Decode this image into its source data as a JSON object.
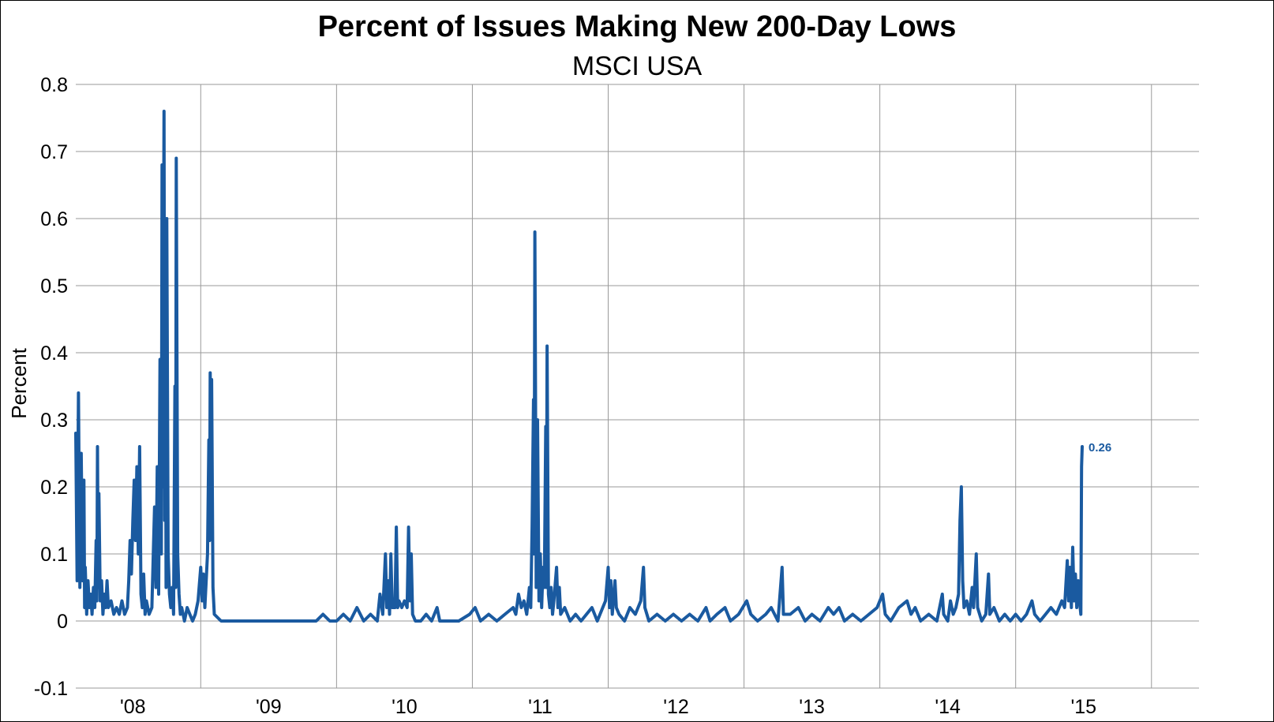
{
  "chart_data": {
    "type": "line",
    "title": "Percent of Issues Making New 200-Day Lows",
    "subtitle": "MSCI USA",
    "ylabel": "Percent",
    "xlabel": "",
    "ylim": [
      -0.1,
      0.8
    ],
    "yticks": [
      "0.8",
      "0.7",
      "0.6",
      "0.5",
      "0.4",
      "0.3",
      "0.2",
      "0.1",
      "0",
      "-0.1"
    ],
    "xlim": [
      2007.58,
      2015.85
    ],
    "year_boundaries": [
      2008.5,
      2009.5,
      2010.5,
      2011.5,
      2012.5,
      2013.5,
      2014.5,
      2015.5
    ],
    "x_tick_labels": [
      {
        "label": "'08",
        "x": 2008.0
      },
      {
        "label": "'09",
        "x": 2009.0
      },
      {
        "label": "'10",
        "x": 2010.0
      },
      {
        "label": "'11",
        "x": 2011.0
      },
      {
        "label": "'12",
        "x": 2012.0
      },
      {
        "label": "'13",
        "x": 2013.0
      },
      {
        "label": "'14",
        "x": 2014.0
      },
      {
        "label": "'15",
        "x": 2015.0
      }
    ],
    "grid": true,
    "colors": {
      "series": "#1a5aa0",
      "grid": "#9a9a9a"
    },
    "last_value_label": "0.26",
    "series": [
      {
        "values": [
          [
            2007.58,
            0.28
          ],
          [
            2007.59,
            0.06
          ],
          [
            2007.6,
            0.34
          ],
          [
            2007.61,
            0.05
          ],
          [
            2007.62,
            0.25
          ],
          [
            2007.63,
            0.06
          ],
          [
            2007.64,
            0.21
          ],
          [
            2007.645,
            0.02
          ],
          [
            2007.65,
            0.08
          ],
          [
            2007.66,
            0.01
          ],
          [
            2007.67,
            0.06
          ],
          [
            2007.68,
            0.02
          ],
          [
            2007.69,
            0.04
          ],
          [
            2007.7,
            0.01
          ],
          [
            2007.71,
            0.05
          ],
          [
            2007.72,
            0.02
          ],
          [
            2007.73,
            0.12
          ],
          [
            2007.735,
            0.03
          ],
          [
            2007.74,
            0.26
          ],
          [
            2007.745,
            0.05
          ],
          [
            2007.75,
            0.19
          ],
          [
            2007.76,
            0.03
          ],
          [
            2007.77,
            0.06
          ],
          [
            2007.78,
            0.01
          ],
          [
            2007.79,
            0.04
          ],
          [
            2007.8,
            0.02
          ],
          [
            2007.81,
            0.06
          ],
          [
            2007.82,
            0.02
          ],
          [
            2007.84,
            0.03
          ],
          [
            2007.86,
            0.01
          ],
          [
            2007.88,
            0.02
          ],
          [
            2007.9,
            0.01
          ],
          [
            2007.92,
            0.03
          ],
          [
            2007.94,
            0.01
          ],
          [
            2007.96,
            0.02
          ],
          [
            2007.97,
            0.06
          ],
          [
            2007.98,
            0.12
          ],
          [
            2007.99,
            0.07
          ],
          [
            2008.0,
            0.15
          ],
          [
            2008.01,
            0.21
          ],
          [
            2008.02,
            0.12
          ],
          [
            2008.03,
            0.23
          ],
          [
            2008.04,
            0.1
          ],
          [
            2008.05,
            0.26
          ],
          [
            2008.06,
            0.04
          ],
          [
            2008.07,
            0.02
          ],
          [
            2008.08,
            0.07
          ],
          [
            2008.09,
            0.01
          ],
          [
            2008.1,
            0.03
          ],
          [
            2008.12,
            0.01
          ],
          [
            2008.14,
            0.02
          ],
          [
            2008.16,
            0.17
          ],
          [
            2008.17,
            0.05
          ],
          [
            2008.18,
            0.23
          ],
          [
            2008.19,
            0.04
          ],
          [
            2008.2,
            0.39
          ],
          [
            2008.21,
            0.1
          ],
          [
            2008.215,
            0.68
          ],
          [
            2008.22,
            0.2
          ],
          [
            2008.23,
            0.76
          ],
          [
            2008.235,
            0.15
          ],
          [
            2008.24,
            0.4
          ],
          [
            2008.245,
            0.05
          ],
          [
            2008.25,
            0.6
          ],
          [
            2008.26,
            0.1
          ],
          [
            2008.27,
            0.04
          ],
          [
            2008.28,
            0.02
          ],
          [
            2008.29,
            0.05
          ],
          [
            2008.3,
            0.01
          ],
          [
            2008.31,
            0.35
          ],
          [
            2008.315,
            0.05
          ],
          [
            2008.32,
            0.69
          ],
          [
            2008.33,
            0.1
          ],
          [
            2008.34,
            0.04
          ],
          [
            2008.35,
            0.01
          ],
          [
            2008.36,
            0.02
          ],
          [
            2008.38,
            0.0
          ],
          [
            2008.4,
            0.02
          ],
          [
            2008.42,
            0.01
          ],
          [
            2008.44,
            0.0
          ],
          [
            2008.46,
            0.01
          ],
          [
            2008.48,
            0.03
          ],
          [
            2008.5,
            0.08
          ],
          [
            2008.51,
            0.03
          ],
          [
            2008.52,
            0.07
          ],
          [
            2008.53,
            0.02
          ],
          [
            2008.54,
            0.06
          ],
          [
            2008.55,
            0.1
          ],
          [
            2008.56,
            0.27
          ],
          [
            2008.565,
            0.12
          ],
          [
            2008.57,
            0.37
          ],
          [
            2008.575,
            0.2
          ],
          [
            2008.58,
            0.36
          ],
          [
            2008.59,
            0.05
          ],
          [
            2008.6,
            0.01
          ],
          [
            2008.65,
            0.0
          ],
          [
            2008.75,
            0.0
          ],
          [
            2008.85,
            0.0
          ],
          [
            2008.95,
            0.0
          ],
          [
            2009.05,
            0.0
          ],
          [
            2009.15,
            0.0
          ],
          [
            2009.25,
            0.0
          ],
          [
            2009.35,
            0.0
          ],
          [
            2009.4,
            0.01
          ],
          [
            2009.45,
            0.0
          ],
          [
            2009.5,
            0.0
          ],
          [
            2009.55,
            0.01
          ],
          [
            2009.6,
            0.0
          ],
          [
            2009.65,
            0.02
          ],
          [
            2009.7,
            0.0
          ],
          [
            2009.75,
            0.01
          ],
          [
            2009.8,
            0.0
          ],
          [
            2009.82,
            0.04
          ],
          [
            2009.84,
            0.01
          ],
          [
            2009.86,
            0.1
          ],
          [
            2009.87,
            0.02
          ],
          [
            2009.88,
            0.06
          ],
          [
            2009.89,
            0.01
          ],
          [
            2009.9,
            0.1
          ],
          [
            2009.91,
            0.02
          ],
          [
            2009.93,
            0.02
          ],
          [
            2009.94,
            0.14
          ],
          [
            2009.95,
            0.02
          ],
          [
            2009.96,
            0.03
          ],
          [
            2009.98,
            0.02
          ],
          [
            2010.0,
            0.03
          ],
          [
            2010.02,
            0.02
          ],
          [
            2010.03,
            0.14
          ],
          [
            2010.04,
            0.03
          ],
          [
            2010.05,
            0.1
          ],
          [
            2010.06,
            0.01
          ],
          [
            2010.08,
            0.0
          ],
          [
            2010.12,
            0.0
          ],
          [
            2010.16,
            0.01
          ],
          [
            2010.2,
            0.0
          ],
          [
            2010.24,
            0.02
          ],
          [
            2010.26,
            0.0
          ],
          [
            2010.32,
            0.0
          ],
          [
            2010.4,
            0.0
          ],
          [
            2010.48,
            0.01
          ],
          [
            2010.52,
            0.02
          ],
          [
            2010.56,
            0.0
          ],
          [
            2010.62,
            0.01
          ],
          [
            2010.68,
            0.0
          ],
          [
            2010.74,
            0.01
          ],
          [
            2010.8,
            0.02
          ],
          [
            2010.82,
            0.01
          ],
          [
            2010.84,
            0.04
          ],
          [
            2010.86,
            0.02
          ],
          [
            2010.88,
            0.03
          ],
          [
            2010.9,
            0.01
          ],
          [
            2010.92,
            0.05
          ],
          [
            2010.93,
            0.02
          ],
          [
            2010.94,
            0.14
          ],
          [
            2010.95,
            0.33
          ],
          [
            2010.955,
            0.1
          ],
          [
            2010.96,
            0.58
          ],
          [
            2010.965,
            0.35
          ],
          [
            2010.97,
            0.05
          ],
          [
            2010.98,
            0.3
          ],
          [
            2010.99,
            0.03
          ],
          [
            2011.0,
            0.1
          ],
          [
            2011.01,
            0.02
          ],
          [
            2011.02,
            0.08
          ],
          [
            2011.03,
            0.05
          ],
          [
            2011.04,
            0.29
          ],
          [
            2011.045,
            0.05
          ],
          [
            2011.05,
            0.41
          ],
          [
            2011.06,
            0.04
          ],
          [
            2011.07,
            0.02
          ],
          [
            2011.08,
            0.05
          ],
          [
            2011.09,
            0.01
          ],
          [
            2011.1,
            0.03
          ],
          [
            2011.12,
            0.08
          ],
          [
            2011.13,
            0.02
          ],
          [
            2011.14,
            0.05
          ],
          [
            2011.15,
            0.01
          ],
          [
            2011.18,
            0.02
          ],
          [
            2011.22,
            0.0
          ],
          [
            2011.26,
            0.01
          ],
          [
            2011.3,
            0.0
          ],
          [
            2011.34,
            0.01
          ],
          [
            2011.38,
            0.02
          ],
          [
            2011.42,
            0.0
          ],
          [
            2011.46,
            0.02
          ],
          [
            2011.48,
            0.03
          ],
          [
            2011.5,
            0.08
          ],
          [
            2011.51,
            0.02
          ],
          [
            2011.52,
            0.06
          ],
          [
            2011.53,
            0.01
          ],
          [
            2011.55,
            0.06
          ],
          [
            2011.56,
            0.02
          ],
          [
            2011.58,
            0.01
          ],
          [
            2011.62,
            0.0
          ],
          [
            2011.66,
            0.02
          ],
          [
            2011.7,
            0.01
          ],
          [
            2011.74,
            0.03
          ],
          [
            2011.76,
            0.08
          ],
          [
            2011.77,
            0.02
          ],
          [
            2011.8,
            0.0
          ],
          [
            2011.86,
            0.01
          ],
          [
            2011.92,
            0.0
          ],
          [
            2011.98,
            0.01
          ],
          [
            2012.04,
            0.0
          ],
          [
            2012.1,
            0.01
          ],
          [
            2012.16,
            0.0
          ],
          [
            2012.22,
            0.02
          ],
          [
            2012.25,
            0.0
          ],
          [
            2012.3,
            0.01
          ],
          [
            2012.36,
            0.02
          ],
          [
            2012.4,
            0.0
          ],
          [
            2012.46,
            0.01
          ],
          [
            2012.52,
            0.03
          ],
          [
            2012.55,
            0.01
          ],
          [
            2012.6,
            0.0
          ],
          [
            2012.66,
            0.01
          ],
          [
            2012.7,
            0.02
          ],
          [
            2012.75,
            0.0
          ],
          [
            2012.78,
            0.08
          ],
          [
            2012.79,
            0.01
          ],
          [
            2012.84,
            0.01
          ],
          [
            2012.9,
            0.02
          ],
          [
            2012.95,
            0.0
          ],
          [
            2013.0,
            0.01
          ],
          [
            2013.06,
            0.0
          ],
          [
            2013.12,
            0.02
          ],
          [
            2013.16,
            0.01
          ],
          [
            2013.2,
            0.02
          ],
          [
            2013.24,
            0.0
          ],
          [
            2013.3,
            0.01
          ],
          [
            2013.36,
            0.0
          ],
          [
            2013.42,
            0.01
          ],
          [
            2013.48,
            0.02
          ],
          [
            2013.52,
            0.04
          ],
          [
            2013.54,
            0.01
          ],
          [
            2013.58,
            0.0
          ],
          [
            2013.64,
            0.02
          ],
          [
            2013.7,
            0.03
          ],
          [
            2013.73,
            0.01
          ],
          [
            2013.76,
            0.02
          ],
          [
            2013.8,
            0.0
          ],
          [
            2013.86,
            0.01
          ],
          [
            2013.92,
            0.0
          ],
          [
            2013.96,
            0.04
          ],
          [
            2013.97,
            0.01
          ],
          [
            2014.0,
            0.0
          ],
          [
            2014.02,
            0.03
          ],
          [
            2014.04,
            0.01
          ],
          [
            2014.06,
            0.02
          ],
          [
            2014.08,
            0.04
          ],
          [
            2014.09,
            0.15
          ],
          [
            2014.1,
            0.2
          ],
          [
            2014.11,
            0.06
          ],
          [
            2014.12,
            0.02
          ],
          [
            2014.14,
            0.03
          ],
          [
            2014.16,
            0.01
          ],
          [
            2014.18,
            0.05
          ],
          [
            2014.19,
            0.02
          ],
          [
            2014.21,
            0.1
          ],
          [
            2014.22,
            0.02
          ],
          [
            2014.25,
            0.0
          ],
          [
            2014.28,
            0.01
          ],
          [
            2014.3,
            0.07
          ],
          [
            2014.31,
            0.01
          ],
          [
            2014.34,
            0.02
          ],
          [
            2014.38,
            0.0
          ],
          [
            2014.42,
            0.01
          ],
          [
            2014.46,
            0.0
          ],
          [
            2014.5,
            0.01
          ],
          [
            2014.54,
            0.0
          ],
          [
            2014.58,
            0.01
          ],
          [
            2014.62,
            0.03
          ],
          [
            2014.64,
            0.01
          ],
          [
            2014.68,
            0.0
          ],
          [
            2014.72,
            0.01
          ],
          [
            2014.76,
            0.02
          ],
          [
            2014.8,
            0.01
          ],
          [
            2014.84,
            0.03
          ],
          [
            2014.86,
            0.02
          ],
          [
            2014.88,
            0.09
          ],
          [
            2014.89,
            0.03
          ],
          [
            2014.9,
            0.08
          ],
          [
            2014.91,
            0.02
          ],
          [
            2014.92,
            0.11
          ],
          [
            2014.93,
            0.03
          ],
          [
            2014.94,
            0.07
          ],
          [
            2014.95,
            0.02
          ],
          [
            2014.96,
            0.06
          ],
          [
            2014.97,
            0.03
          ],
          [
            2014.98,
            0.01
          ],
          [
            2014.985,
            0.23
          ],
          [
            2014.99,
            0.26
          ]
        ]
      }
    ]
  }
}
